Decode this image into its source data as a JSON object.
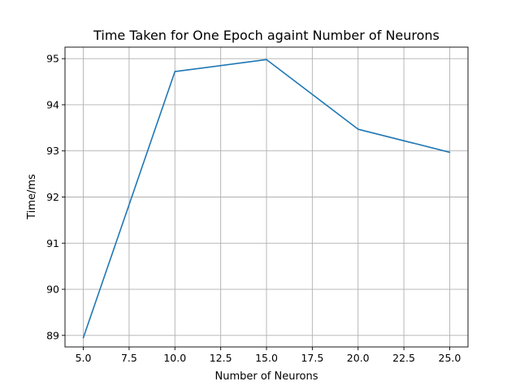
{
  "chart_data": {
    "type": "line",
    "title": "Time Taken for One Epoch againt Number of Neurons",
    "xlabel": "Number of Neurons",
    "ylabel": "Time/ms",
    "x": [
      5,
      10,
      15,
      20,
      25
    ],
    "series": [
      {
        "values": [
          88.95,
          94.72,
          94.98,
          93.47,
          92.97
        ]
      }
    ],
    "xlim": [
      4,
      26
    ],
    "ylim": [
      88.75,
      95.25
    ],
    "xticks": [
      5.0,
      7.5,
      10.0,
      12.5,
      15.0,
      17.5,
      20.0,
      22.5,
      25.0
    ],
    "xtick_labels": [
      "5.0",
      "7.5",
      "10.0",
      "12.5",
      "15.0",
      "17.5",
      "20.0",
      "22.5",
      "25.0"
    ],
    "yticks": [
      89,
      90,
      91,
      92,
      93,
      94,
      95
    ],
    "ytick_labels": [
      "89",
      "90",
      "91",
      "92",
      "93",
      "94",
      "95"
    ],
    "grid": true,
    "colors": {
      "series": "#1f77b4",
      "grid": "#b0b0b0"
    }
  }
}
